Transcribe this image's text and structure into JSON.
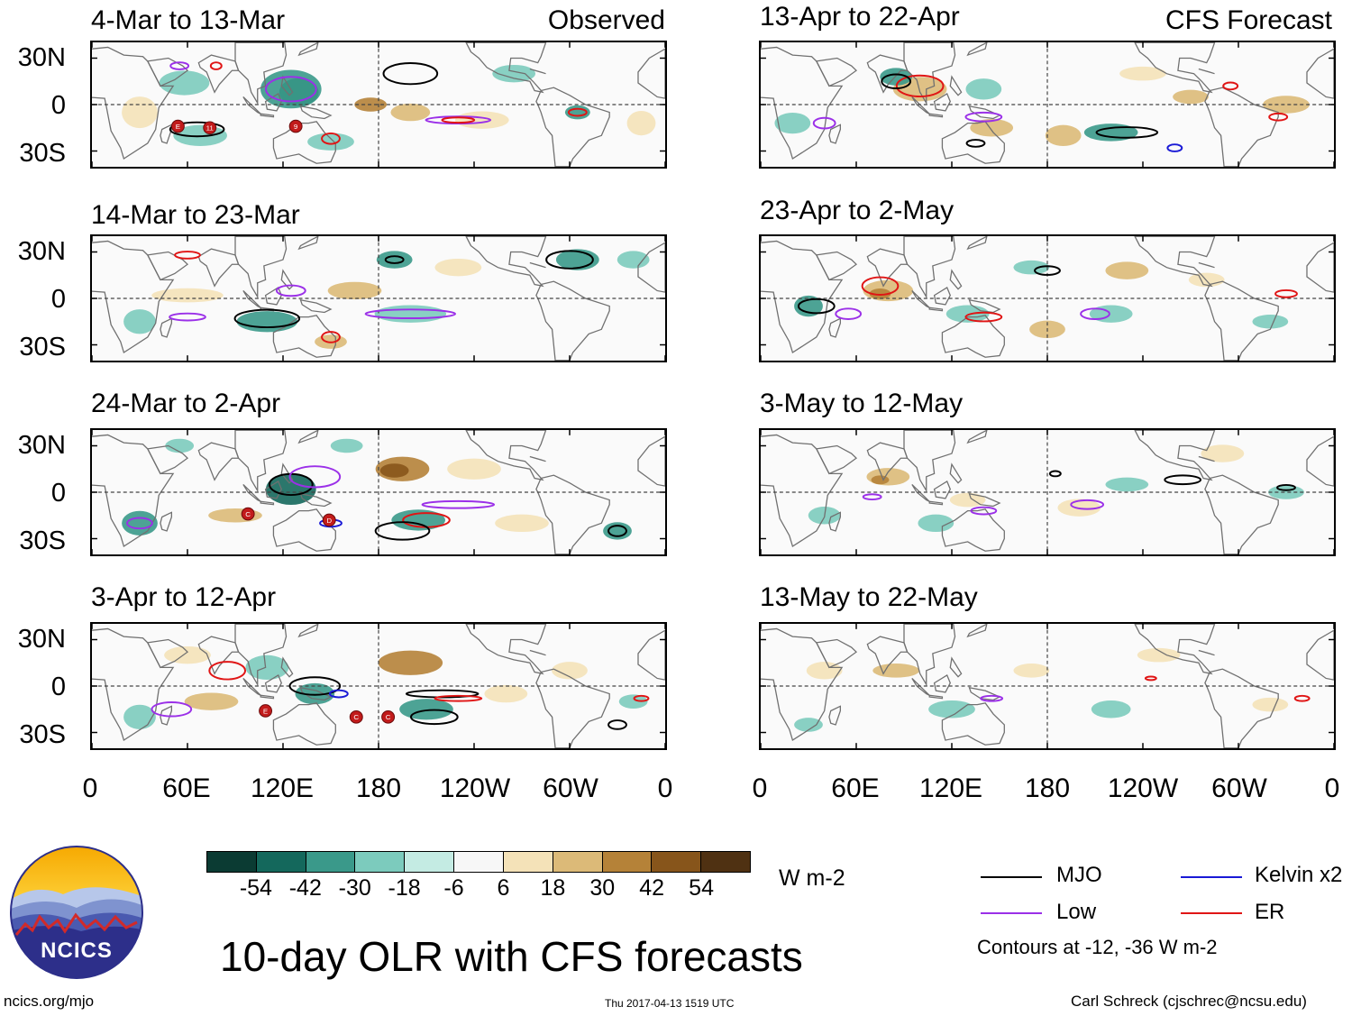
{
  "figure": {
    "title": "10-day OLR with CFS forecasts",
    "observed_label": "Observed",
    "forecast_label": "CFS Forecast",
    "website": "ncics.org/mjo",
    "timestamp": "Thu 2017-04-13 1519 UTC",
    "author": "Carl Schreck (cjschrec@ncsu.edu)",
    "logo_text": "NCICS"
  },
  "panels_left": [
    {
      "title": "4-Mar to 13-Mar"
    },
    {
      "title": "14-Mar to 23-Mar"
    },
    {
      "title": "24-Mar to 2-Apr"
    },
    {
      "title": "3-Apr to 12-Apr"
    }
  ],
  "panels_right": [
    {
      "title": "13-Apr to 22-Apr"
    },
    {
      "title": "23-Apr to 2-May"
    },
    {
      "title": "3-May to 12-May"
    },
    {
      "title": "13-May to 22-May"
    }
  ],
  "axes": {
    "lat_ticks": [
      "30N",
      "0",
      "30S"
    ],
    "lon_ticks": [
      "0",
      "60E",
      "120E",
      "180",
      "120W",
      "60W",
      "0"
    ]
  },
  "colorbar": {
    "units": "W m-2",
    "labels": [
      "-54",
      "-42",
      "-30",
      "-18",
      "-6",
      "6",
      "18",
      "30",
      "42",
      "54"
    ],
    "colors": [
      "#0b3b33",
      "#14685c",
      "#3a998a",
      "#7ccbbd",
      "#c4ebe3",
      "#f7f7f7",
      "#f4e2b8",
      "#dcba78",
      "#b58238",
      "#87551b",
      "#4f3112"
    ]
  },
  "legend": {
    "items": [
      {
        "label": "MJO",
        "color": "#000000"
      },
      {
        "label": "Kelvin x2",
        "color": "#1a1ad6"
      },
      {
        "label": "Low",
        "color": "#9b30e8"
      },
      {
        "label": "ER",
        "color": "#e01515"
      }
    ],
    "note": "Contours at -12, -36 W m-2"
  },
  "storm_markers": [
    {
      "panel": 0,
      "labels": [
        "E",
        "11",
        "9"
      ]
    },
    {
      "panel": 2,
      "labels": [
        "C",
        "D"
      ]
    },
    {
      "panel": 3,
      "labels": [
        "E",
        "C",
        "C"
      ]
    }
  ]
}
